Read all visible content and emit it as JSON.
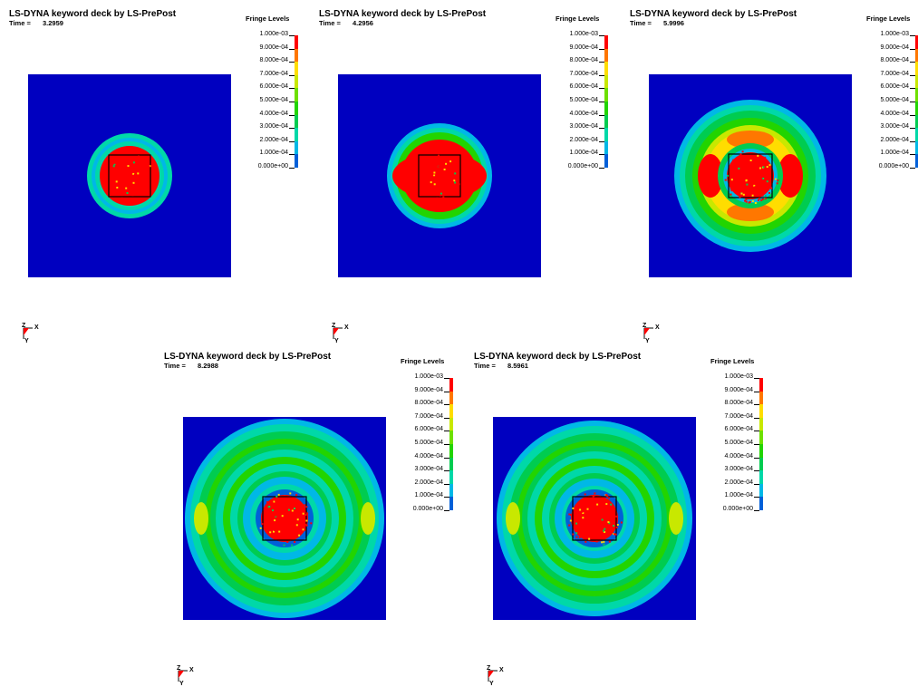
{
  "title": "LS-DYNA keyword deck by LS-PrePost",
  "time_label": "Time =",
  "legend_title": "Fringe Levels",
  "fringe_levels": [
    "1.000e-03",
    "9.000e-04",
    "8.000e-04",
    "7.000e-04",
    "6.000e-04",
    "5.000e-04",
    "4.000e-04",
    "3.000e-04",
    "2.000e-04",
    "1.000e-04",
    "0.000e+00"
  ],
  "colors": [
    "#ff0000",
    "#ff7700",
    "#ffdd00",
    "#c8e800",
    "#6ee000",
    "#22d400",
    "#00cc50",
    "#00d8a8",
    "#00b8e6",
    "#0060d8",
    "#0000e8"
  ],
  "background_color": "#0000c0",
  "axis_labels": {
    "z": "Z",
    "x": "X",
    "y": "Y"
  },
  "panels": [
    {
      "time": "3.2959"
    },
    {
      "time": "4.2956"
    },
    {
      "time": "5.9996"
    },
    {
      "time": "8.2988"
    },
    {
      "time": "8.5961"
    }
  ]
}
